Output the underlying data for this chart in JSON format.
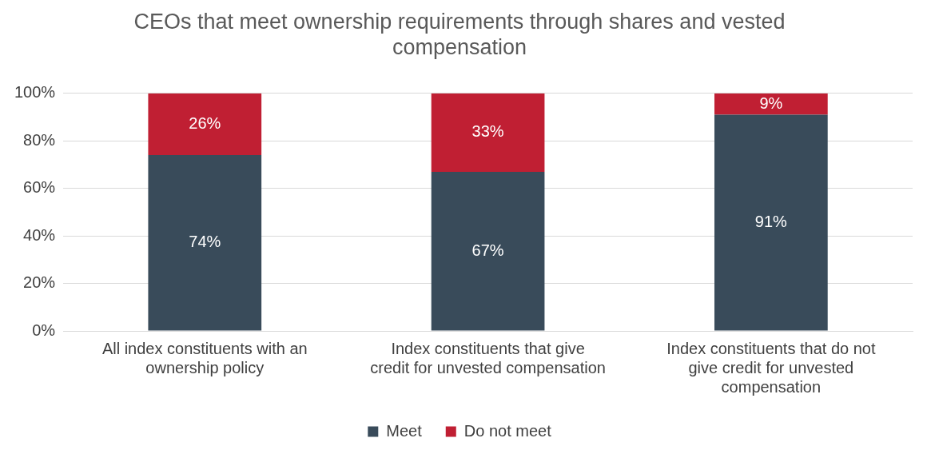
{
  "chart_data": {
    "type": "bar",
    "title": "CEOs that meet ownership requirements through shares and vested compensation",
    "categories": [
      "All index constituents with an ownership policy",
      "Index constituents that give credit for unvested compensation",
      "Index constituents that do not give credit for unvested compensation"
    ],
    "series": [
      {
        "name": "Meet",
        "color": "#394b5a",
        "values": [
          74,
          67,
          91
        ],
        "value_labels": [
          "74%",
          "67%",
          "91%"
        ]
      },
      {
        "name": "Do not meet",
        "color": "#c01f33",
        "values": [
          26,
          33,
          9
        ],
        "value_labels": [
          "26%",
          "33%",
          "9%"
        ]
      }
    ],
    "stacked": true,
    "ylim": [
      0,
      100
    ],
    "yticks": [
      {
        "value": 0,
        "label": "0%"
      },
      {
        "value": 20,
        "label": "20%"
      },
      {
        "value": 40,
        "label": "40%"
      },
      {
        "value": 60,
        "label": "60%"
      },
      {
        "value": 80,
        "label": "80%"
      },
      {
        "value": 100,
        "label": "100%"
      }
    ],
    "grid": "y",
    "legend": "bottom"
  }
}
